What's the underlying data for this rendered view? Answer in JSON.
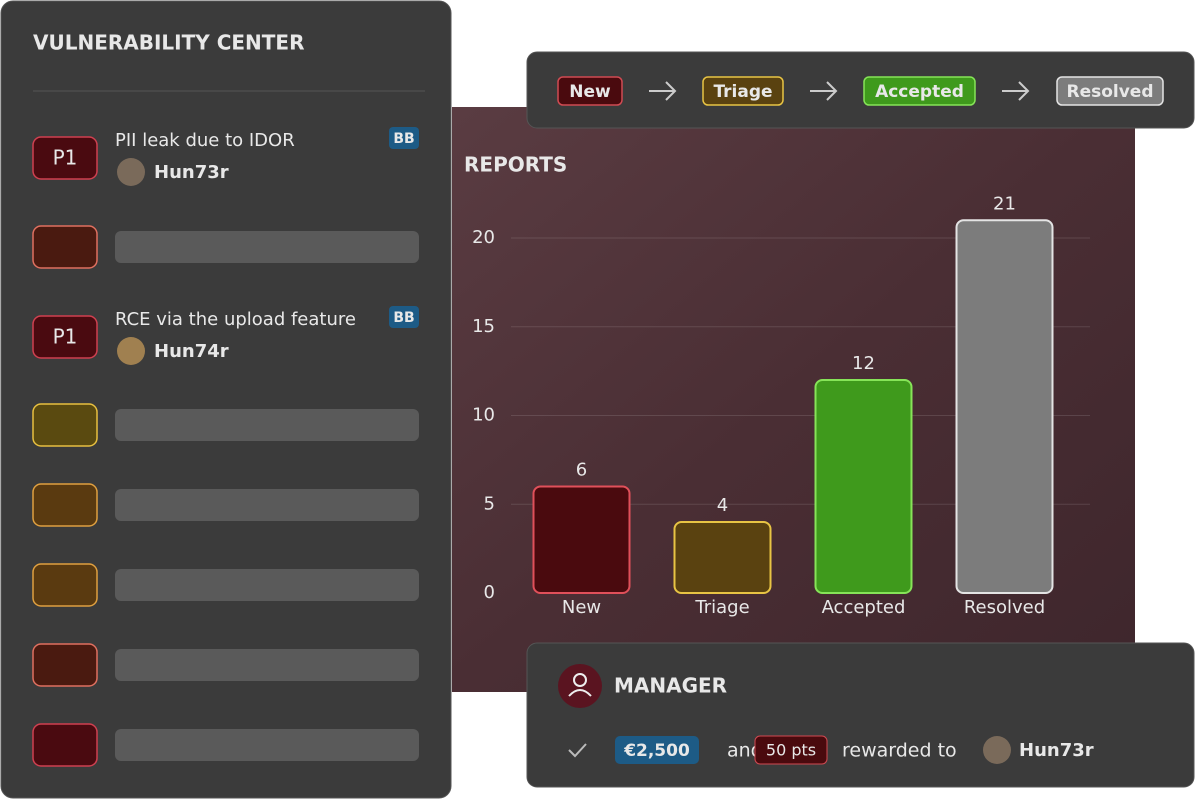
{
  "sidebar": {
    "title": "VULNERABILITY CENTER",
    "reports": [
      {
        "priority": "P1",
        "title": "PII leak due to IDOR",
        "user": "Hun73r",
        "tag": "BB"
      },
      {
        "priority": "P1",
        "title": "RCE via the upload feature",
        "user": "Hun74r",
        "tag": "BB"
      }
    ]
  },
  "pipeline": {
    "statuses": [
      "New",
      "Triage",
      "Accepted",
      "Resolved"
    ]
  },
  "chart_data": {
    "type": "bar",
    "title": "REPORTS",
    "categories": [
      "New",
      "Triage",
      "Accepted",
      "Resolved"
    ],
    "values": [
      6,
      4,
      12,
      21
    ],
    "colors": [
      "#4a0a0e",
      "#5a4210",
      "#3f9a1c",
      "#7c7c7c"
    ],
    "edgecolors": [
      "#e0505a",
      "#e8c444",
      "#86e458",
      "#e4e4e4"
    ],
    "ylim": [
      0,
      22
    ],
    "yticks": [
      0,
      5,
      10,
      15,
      20
    ],
    "grid": true
  },
  "manager": {
    "title": "MANAGER",
    "reward": "€2,500",
    "joiner": "and",
    "points": "50 pts",
    "phrase": "rewarded to",
    "user": "Hun73r"
  }
}
